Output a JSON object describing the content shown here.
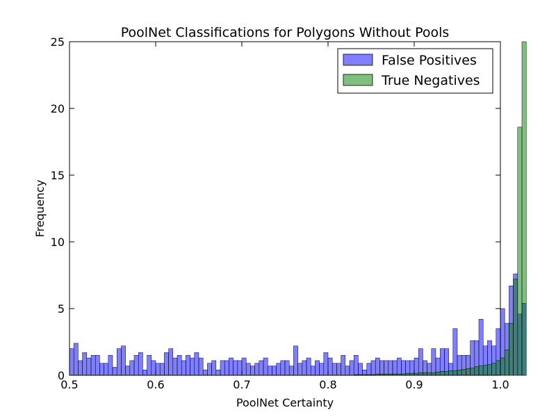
{
  "chart_data": {
    "type": "bar",
    "title": "PoolNet Classifications for Polygons Without Pools",
    "xlabel": "PoolNet Certainty",
    "ylabel": "Frequency",
    "xlim": [
      0.5,
      1.0
    ],
    "ylim": [
      0,
      25
    ],
    "xticks": [
      "0.5",
      "0.6",
      "0.7",
      "0.8",
      "0.9",
      "1.0"
    ],
    "yticks": [
      "0",
      "5",
      "10",
      "15",
      "20",
      "25"
    ],
    "bin_edges_start": 0.5,
    "bin_width": 0.005,
    "legend_position": "top-right",
    "grid": false,
    "series": [
      {
        "name": "False Positives",
        "color": "#0000ff",
        "values": [
          2.0,
          2.4,
          1.1,
          1.7,
          1.3,
          1.5,
          1.5,
          0.9,
          0.9,
          1.5,
          0.6,
          2.0,
          2.2,
          0.7,
          1.1,
          1.5,
          1.7,
          0.4,
          1.5,
          1.1,
          0.9,
          0.9,
          1.7,
          2.0,
          1.3,
          1.5,
          1.1,
          1.5,
          1.3,
          1.7,
          1.3,
          0.4,
          0.9,
          1.1,
          0.4,
          1.1,
          1.1,
          1.3,
          1.1,
          1.1,
          1.3,
          0.9,
          0.7,
          0.9,
          1.1,
          1.3,
          0.7,
          0.7,
          0.9,
          1.1,
          1.1,
          0.7,
          2.2,
          0.9,
          1.1,
          1.3,
          0.7,
          1.1,
          0.9,
          1.7,
          1.3,
          0.9,
          0.9,
          1.5,
          0.7,
          1.1,
          1.5,
          0.9,
          0.4,
          0.9,
          1.1,
          1.3,
          1.1,
          1.1,
          1.1,
          1.1,
          1.3,
          1.1,
          1.1,
          1.1,
          1.3,
          2.0,
          1.1,
          0.9,
          2.0,
          1.3,
          2.0,
          2.0,
          0.9,
          3.5,
          1.5,
          1.5,
          1.5,
          2.6,
          2.6,
          4.2,
          2.2,
          2.6,
          2.2,
          3.5,
          5.0,
          3.9,
          6.7,
          7.6,
          4.6,
          5.4
        ]
      },
      {
        "name": "True Negatives",
        "color": "#008000",
        "values": [
          0.0,
          0.0,
          0.0,
          0.0,
          0.0,
          0.0,
          0.0,
          0.0,
          0.0,
          0.0,
          0.0,
          0.0,
          0.0,
          0.0,
          0.0,
          0.0,
          0.0,
          0.0,
          0.0,
          0.0,
          0.0,
          0.0,
          0.0,
          0.0,
          0.0,
          0.0,
          0.0,
          0.0,
          0.0,
          0.0,
          0.0,
          0.0,
          0.0,
          0.0,
          0.0,
          0.0,
          0.0,
          0.0,
          0.0,
          0.0,
          0.0,
          0.0,
          0.0,
          0.0,
          0.0,
          0.0,
          0.0,
          0.0,
          0.0,
          0.0,
          0.0,
          0.0,
          0.0,
          0.0,
          0.0,
          0.0,
          0.0,
          0.0,
          0.0,
          0.0,
          0.0,
          0.0,
          0.0,
          0.0,
          0.0,
          0.0,
          0.05,
          0.05,
          0.05,
          0.05,
          0.05,
          0.1,
          0.1,
          0.1,
          0.1,
          0.1,
          0.1,
          0.1,
          0.15,
          0.15,
          0.15,
          0.2,
          0.2,
          0.2,
          0.2,
          0.25,
          0.3,
          0.3,
          0.35,
          0.35,
          0.4,
          0.45,
          0.5,
          0.55,
          0.65,
          0.7,
          0.75,
          0.8,
          0.9,
          1.1,
          1.3,
          1.9,
          3.9,
          7.2,
          18.6,
          25.0
        ]
      }
    ]
  }
}
